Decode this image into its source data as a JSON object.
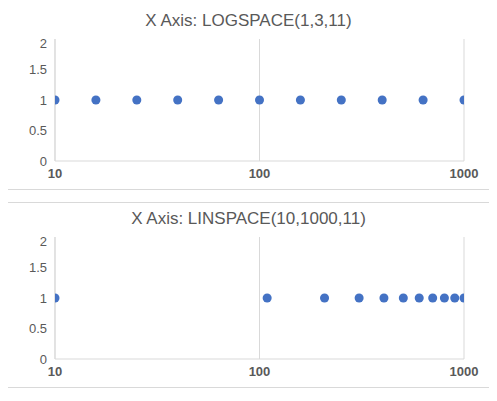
{
  "chart_data": [
    {
      "type": "scatter",
      "title": "X Axis: LOGSPACE(1,3,11)",
      "x": [
        10,
        15.85,
        25.12,
        39.81,
        63.1,
        100,
        158.5,
        251.2,
        398.1,
        631,
        1000
      ],
      "values": [
        1,
        1,
        1,
        1,
        1,
        1,
        1,
        1,
        1,
        1,
        1
      ],
      "color": "#4472c4",
      "marker": "circle",
      "log": "x",
      "xlim": [
        10,
        1000
      ],
      "xticks": [
        10,
        100,
        1000
      ],
      "ylim": [
        0,
        2
      ],
      "yticks": [
        0,
        0.5,
        1,
        1.5,
        2
      ],
      "grid": true
    },
    {
      "type": "scatter",
      "title": "X Axis: LINSPACE(10,1000,11)",
      "x": [
        10,
        109,
        208,
        307,
        406,
        505,
        604,
        703,
        802,
        901,
        1000
      ],
      "values": [
        1,
        1,
        1,
        1,
        1,
        1,
        1,
        1,
        1,
        1,
        1
      ],
      "color": "#4472c4",
      "marker": "circle",
      "log": "x",
      "xlim": [
        10,
        1000
      ],
      "xticks": [
        10,
        100,
        1000
      ],
      "ylim": [
        0,
        2
      ],
      "yticks": [
        0,
        0.5,
        1,
        1.5,
        2
      ],
      "grid": true
    }
  ]
}
